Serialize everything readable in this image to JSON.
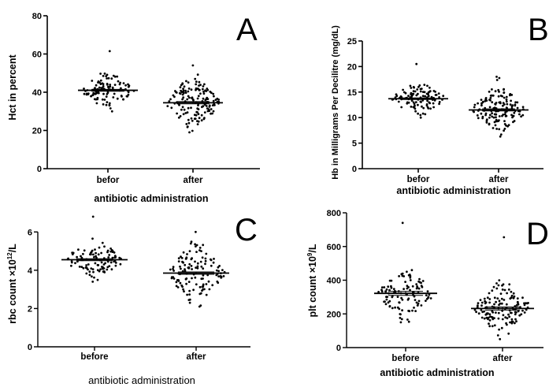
{
  "chart_data": [
    {
      "type": "scatter",
      "panel": "A",
      "letter": "A",
      "ylabel": "Hct in percent",
      "xlabel": "antibiotic administration",
      "categories": [
        "befor",
        "after"
      ],
      "ylim": [
        0,
        80
      ],
      "yticks": [
        "0",
        "20",
        "40",
        "60",
        "80"
      ],
      "series": [
        {
          "category": "befor",
          "mean": 41,
          "sem": 0.5,
          "min": 30,
          "max": 61.5,
          "n": 110
        },
        {
          "category": "after",
          "mean": 34.5,
          "sem": 0.6,
          "min": 19,
          "max": 54,
          "n": 150
        }
      ]
    },
    {
      "type": "scatter",
      "panel": "B",
      "letter": "B",
      "ylabel": "Hb in Milligrams Per Decilitre (mg/dL)",
      "xlabel": "antibiotic administration",
      "categories": [
        "befor",
        "after"
      ],
      "ylim": [
        0,
        25
      ],
      "yticks": [
        "0",
        "5",
        "10",
        "15",
        "20",
        "25"
      ],
      "series": [
        {
          "category": "befor",
          "mean": 13.7,
          "sem": 0.15,
          "min": 10,
          "max": 20.5,
          "n": 110
        },
        {
          "category": "after",
          "mean": 11.5,
          "sem": 0.2,
          "min": 6.3,
          "max": 18,
          "n": 150
        }
      ]
    },
    {
      "type": "scatter",
      "panel": "C",
      "letter": "C",
      "ylabel": "rbc count ×10",
      "ylabel_sup": "12",
      "ylabel_tail": "/L",
      "xlabel": "antibiotic administration",
      "categories": [
        "before",
        "after"
      ],
      "ylim": [
        0,
        7
      ],
      "yticks": [
        "0",
        "2",
        "4",
        "6"
      ],
      "ytick_values": [
        0,
        2,
        4,
        6
      ],
      "series": [
        {
          "category": "before",
          "mean": 4.55,
          "sem": 0.05,
          "min": 3.4,
          "max": 6.8,
          "n": 110
        },
        {
          "category": "after",
          "mean": 3.85,
          "sem": 0.06,
          "min": 2.1,
          "max": 6.0,
          "n": 130
        }
      ]
    },
    {
      "type": "scatter",
      "panel": "D",
      "letter": "D",
      "ylabel": "plt count ×10",
      "ylabel_sup": "9",
      "ylabel_tail": "/L",
      "xlabel": "antibiotic administration",
      "categories": [
        "before",
        "after"
      ],
      "ylim": [
        0,
        800
      ],
      "yticks": [
        "0",
        "200",
        "400",
        "600",
        "800"
      ],
      "series": [
        {
          "category": "before",
          "mean": 322,
          "sem": 12,
          "min": 150,
          "max": 740,
          "n": 110
        },
        {
          "category": "after",
          "mean": 232,
          "sem": 9,
          "min": 50,
          "max": 655,
          "n": 140
        }
      ]
    }
  ]
}
